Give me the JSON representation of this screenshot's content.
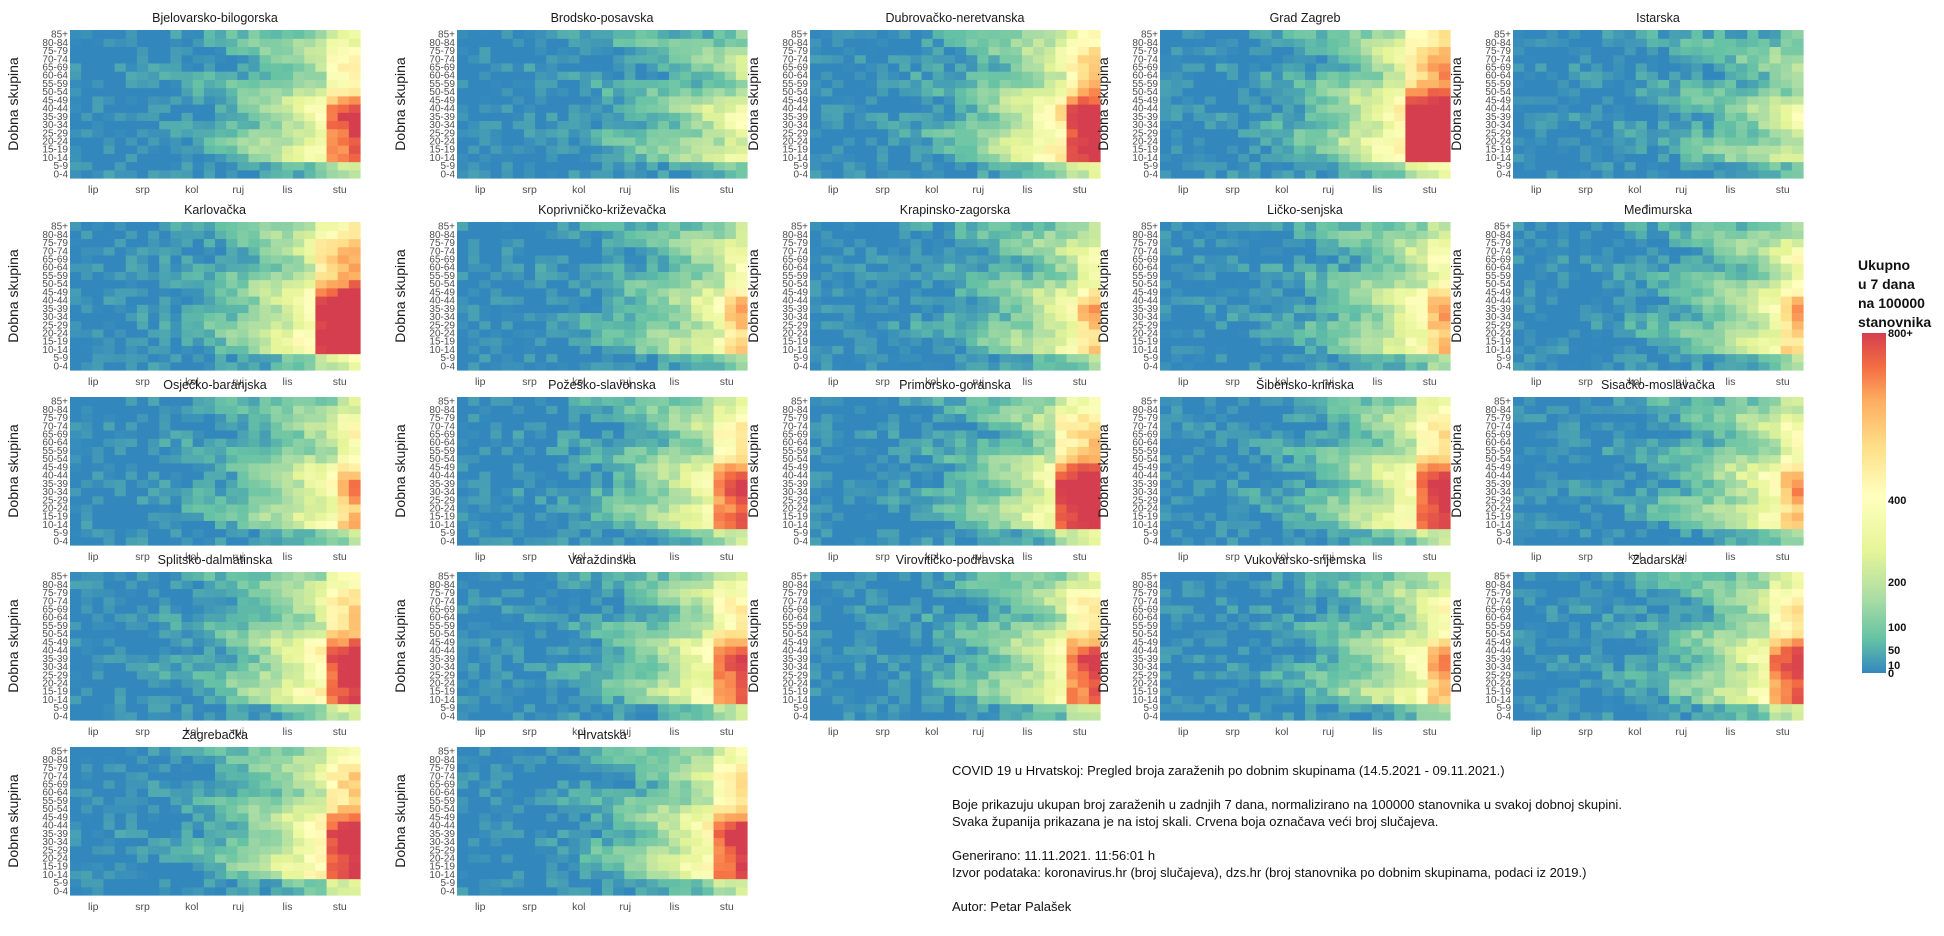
{
  "chart_data": {
    "type": "heatmap",
    "panels": [
      {
        "title": "Bjelovarsko-bilogorska",
        "intensity": 0.55,
        "hot": 2
      },
      {
        "title": "Brodsko-posavska",
        "intensity": 0.35,
        "hot": 0
      },
      {
        "title": "Dubrovačko-neretvanska",
        "intensity": 0.7,
        "hot": 2
      },
      {
        "title": "Grad Zagreb",
        "intensity": 0.75,
        "hot": 3
      },
      {
        "title": "Istarska",
        "intensity": 0.3,
        "hot": 0
      },
      {
        "title": "Karlovačka",
        "intensity": 0.7,
        "hot": 3
      },
      {
        "title": "Koprivničko-križevačka",
        "intensity": 0.45,
        "hot": 1
      },
      {
        "title": "Krapinsko-zagorska",
        "intensity": 0.45,
        "hot": 1
      },
      {
        "title": "Ličko-senjska",
        "intensity": 0.5,
        "hot": 1
      },
      {
        "title": "Međimurska",
        "intensity": 0.45,
        "hot": 1
      },
      {
        "title": "Osječko-baranjska",
        "intensity": 0.5,
        "hot": 1
      },
      {
        "title": "Požeško-slavonska",
        "intensity": 0.55,
        "hot": 2
      },
      {
        "title": "Primorsko-goranska",
        "intensity": 0.6,
        "hot": 3
      },
      {
        "title": "Šibensko-kninska",
        "intensity": 0.6,
        "hot": 2
      },
      {
        "title": "Sisačko-moslavačka",
        "intensity": 0.5,
        "hot": 1
      },
      {
        "title": "Splitsko-dalmatinska",
        "intensity": 0.65,
        "hot": 2
      },
      {
        "title": "Varaždinska",
        "intensity": 0.55,
        "hot": 2
      },
      {
        "title": "Virovitičko-podravska",
        "intensity": 0.55,
        "hot": 2
      },
      {
        "title": "Vukovarsko-srijemska",
        "intensity": 0.5,
        "hot": 1
      },
      {
        "title": "Zadarska",
        "intensity": 0.55,
        "hot": 2
      },
      {
        "title": "Zagrebačka",
        "intensity": 0.65,
        "hot": 2
      },
      {
        "title": "Hrvatska",
        "intensity": 0.6,
        "hot": 2
      }
    ],
    "age_groups": [
      "0-4",
      "5-9",
      "10-14",
      "15-19",
      "20-24",
      "25-29",
      "30-34",
      "35-39",
      "40-44",
      "45-49",
      "50-54",
      "55-59",
      "60-64",
      "65-69",
      "70-74",
      "75-79",
      "80-84",
      "85+"
    ],
    "months": [
      "lip",
      "srp",
      "kol",
      "ruj",
      "lis",
      "stu"
    ],
    "ylabel": "Dobna skupina",
    "date_range": [
      "14.5.2021",
      "09.11.2021"
    ],
    "color_scale": {
      "colors": [
        "#3288bd",
        "#66c2a5",
        "#abdda4",
        "#e6f598",
        "#ffffbf",
        "#fee08b",
        "#fdae61",
        "#f46d43",
        "#d53e4f"
      ],
      "ticks": [
        "800+",
        "400",
        "200",
        "100",
        "50",
        "10",
        "0"
      ]
    }
  },
  "legend": {
    "title_lines": [
      "Ukupno",
      "u 7 dana",
      "na 100000",
      "stanovnika"
    ]
  },
  "caption": {
    "line1": "COVID 19 u Hrvatskoj: Pregled broja zaraženih po dobnim skupinama (14.5.2021 - 09.11.2021.)",
    "line2": "Boje prikazuju ukupan broj zaraženih u zadnjih 7 dana, normalizirano na 100000 stanovnika u svakoj dobnoj skupini.",
    "line3": "Svaka županija prikazana je na istoj skali. Crvena boja označava veći broj slučajeva.",
    "line4": "Generirano: 11.11.2021. 11:56:01 h",
    "line5": "Izvor podataka: koronavirus.hr (broj slučajeva), dzs.hr (broj stanovnika po dobnim skupinama, podaci iz 2019.)",
    "line6": "Autor: Petar Palašek"
  }
}
